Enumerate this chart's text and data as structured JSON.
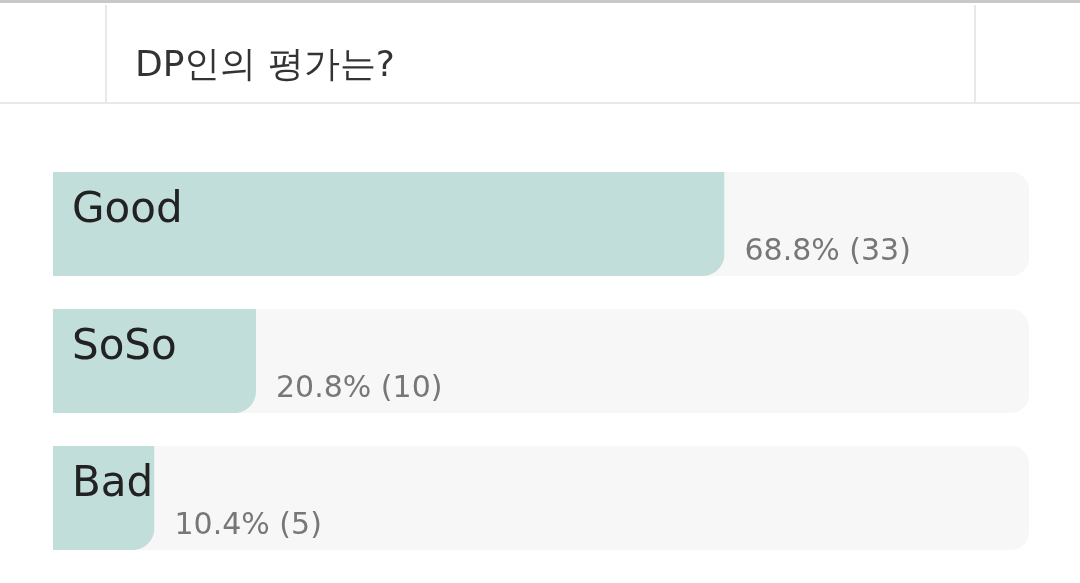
{
  "chart_data": {
    "type": "bar",
    "orientation": "horizontal",
    "title": "DP인의 평가는?",
    "categories": [
      "Good",
      "SoSo",
      "Bad"
    ],
    "values": [
      68.8,
      20.8,
      10.4
    ],
    "color": "#c2dedb",
    "value_labels": [
      "68.8% (33)",
      "20.8% (10)",
      "10.4% (5)"
    ],
    "xlim": [
      0,
      100
    ],
    "tick_labels": "y"
  }
}
